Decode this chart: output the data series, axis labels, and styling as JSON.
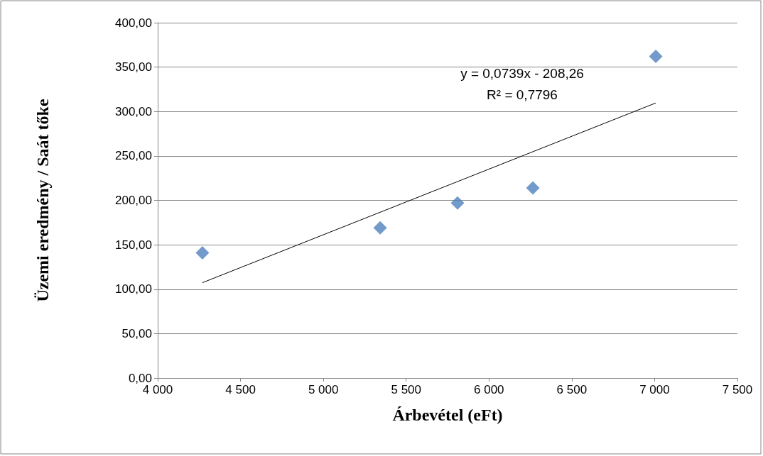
{
  "chart_data": {
    "type": "scatter",
    "xlabel": "Árbevétel (eFt)",
    "ylabel": "Üzemi eredmény / Saát tőke",
    "series": [
      {
        "color": "#4f81bd",
        "marker": "diamond",
        "x": [
          4270,
          5343,
          5810,
          6265,
          7007
        ],
        "values": [
          141,
          169,
          197,
          214,
          362
        ]
      },
      {
        "type": "line",
        "color": "#000000",
        "marker": "none",
        "x": [
          4270,
          7007
        ],
        "values": [
          107.3,
          309.6
        ]
      }
    ],
    "annotations": [
      "y = 0,0739x - 208,26",
      "R² = 0,7796"
    ],
    "xlim": [
      4000,
      7500
    ],
    "xticks": [
      {
        "value": 4000,
        "label": "4 000"
      },
      {
        "value": 4500,
        "label": "4 500"
      },
      {
        "value": 5000,
        "label": "5 000"
      },
      {
        "value": 5500,
        "label": "5 500"
      },
      {
        "value": 6000,
        "label": "6 000"
      },
      {
        "value": 6500,
        "label": "6 500"
      },
      {
        "value": 7000,
        "label": "7 000"
      },
      {
        "value": 7500,
        "label": "7 500"
      }
    ],
    "ylim": [
      0,
      400
    ],
    "yticks": [
      {
        "value": 0,
        "label": "0,00"
      },
      {
        "value": 50,
        "label": "50,00"
      },
      {
        "value": 100,
        "label": "100,00"
      },
      {
        "value": 150,
        "label": "150,00"
      },
      {
        "value": 200,
        "label": "200,00"
      },
      {
        "value": 250,
        "label": "250,00"
      },
      {
        "value": 300,
        "label": "300,00"
      },
      {
        "value": 350,
        "label": "350,00"
      },
      {
        "value": 400,
        "label": "400,00"
      }
    ],
    "grid": "y"
  }
}
